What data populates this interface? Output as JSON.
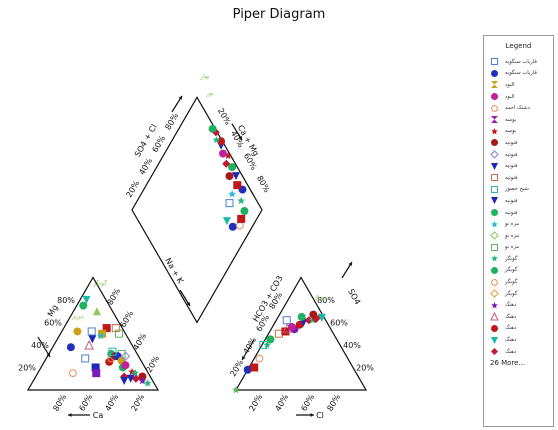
{
  "chart_data": {
    "type": "scatter",
    "title": "Piper Diagram",
    "axes": {
      "cation_triangle": {
        "left_label": "Mg",
        "bottom_label": "Ca",
        "right_label": "Na + K"
      },
      "anion_triangle": {
        "left_label": "HCO3 + CO3",
        "bottom_label": "Cl",
        "right_label": "SO4"
      },
      "diamond": {
        "upper_left_label": "SO4 + Cl",
        "upper_right_label": "Ca + Mg"
      },
      "ticks": [
        "20%",
        "40%",
        "60%",
        "80%"
      ]
    },
    "legend": {
      "title": "Legend",
      "more": "26 More...",
      "items": [
        {
          "name": "قاریاب سنگویه",
          "marker": "square-open",
          "color": "#4a7fd0"
        },
        {
          "name": "قاریاب سنگویه",
          "marker": "circle",
          "color": "#1f2fbf"
        },
        {
          "name": "البود",
          "marker": "hourglass",
          "color": "#c8a11a"
        },
        {
          "name": "البود",
          "marker": "circle",
          "color": "#c0219a"
        },
        {
          "name": "دشتک احمد",
          "marker": "circle-open",
          "color": "#e88a57"
        },
        {
          "name": "بوسه",
          "marker": "hourglass",
          "color": "#9b1bb0"
        },
        {
          "name": "بوسه",
          "marker": "star",
          "color": "#c01818"
        },
        {
          "name": "فتوتیه",
          "marker": "circle",
          "color": "#a81818"
        },
        {
          "name": "فتوتیه",
          "marker": "diamond-open",
          "color": "#7a88d8"
        },
        {
          "name": "فتوتیه",
          "marker": "triangle-down",
          "color": "#1a2ab8"
        },
        {
          "name": "فتوتیه",
          "marker": "square-open",
          "color": "#d06a4a"
        },
        {
          "name": "شیخ حصور",
          "marker": "square-open",
          "color": "#2ab8b0"
        },
        {
          "name": "فتوتیه",
          "marker": "triangle-down",
          "color": "#1a2ab8"
        },
        {
          "name": "فتوتیه",
          "marker": "circle",
          "color": "#1fb060"
        },
        {
          "name": "مزه نو",
          "marker": "star",
          "color": "#2ab8d8"
        },
        {
          "name": "مزه نو",
          "marker": "diamond-open",
          "color": "#8ac858"
        },
        {
          "name": "مزه نو",
          "marker": "square-open",
          "color": "#58b858"
        },
        {
          "name": "گوبگز",
          "marker": "star",
          "color": "#1fb880"
        },
        {
          "name": "گوبگز",
          "marker": "circle",
          "color": "#1fb060"
        },
        {
          "name": "گوبگز",
          "marker": "circle-open",
          "color": "#e88a57"
        },
        {
          "name": "گوبگز",
          "marker": "diamond-open",
          "color": "#e8a040"
        },
        {
          "name": "دهنگ",
          "marker": "star",
          "color": "#7a1ab8"
        },
        {
          "name": "دهنگ",
          "marker": "triangle-open",
          "color": "#c85a78"
        },
        {
          "name": "دهنگ",
          "marker": "circle",
          "color": "#c01818"
        },
        {
          "name": "دهنگ",
          "marker": "triangle-down",
          "color": "#1ab8a8"
        },
        {
          "name": "دهنگ",
          "marker": "diamond",
          "color": "#c01830"
        }
      ]
    },
    "annotations": [
      "گوبگز",
      "دهنگ",
      "تبریز",
      "بهار",
      "نور"
    ],
    "samples": {
      "cations": [
        {
          "Ca": 15,
          "Mg": 80,
          "marker": "triangle-down",
          "color": "#1ab8a8"
        },
        {
          "Ca": 20,
          "Mg": 75,
          "marker": "circle",
          "color": "#1fb060"
        },
        {
          "Ca": 12,
          "Mg": 70,
          "marker": "triangle",
          "color": "#8ac858"
        },
        {
          "Ca": 36,
          "Mg": 52,
          "marker": "circle",
          "color": "#c8a11a"
        },
        {
          "Ca": 48,
          "Mg": 38,
          "marker": "circle",
          "color": "#1f2fbf"
        },
        {
          "Ca": 12,
          "Mg": 55,
          "marker": "square",
          "color": "#c01818"
        },
        {
          "Ca": 5,
          "Mg": 55,
          "marker": "square-open",
          "color": "#d06a4a"
        },
        {
          "Ca": 25,
          "Mg": 52,
          "marker": "square-open",
          "color": "#4a7fd0"
        },
        {
          "Ca": 18,
          "Mg": 50,
          "marker": "square",
          "color": "#c8a11a"
        },
        {
          "Ca": 20,
          "Mg": 48,
          "marker": "star",
          "color": "#2ab8d8"
        },
        {
          "Ca": 5,
          "Mg": 50,
          "marker": "square-open",
          "color": "#58b858"
        },
        {
          "Ca": 28,
          "Mg": 45,
          "marker": "triangle-down",
          "color": "#1a2ab8"
        },
        {
          "Ca": 33,
          "Mg": 40,
          "marker": "triangle-open",
          "color": "#c85a78"
        },
        {
          "Ca": 42,
          "Mg": 28,
          "marker": "square-open",
          "color": "#4a7fd0"
        },
        {
          "Ca": 12,
          "Mg": 32,
          "marker": "square-open",
          "color": "#58b858"
        },
        {
          "Ca": 20,
          "Mg": 32,
          "marker": "circle",
          "color": "#1fb060"
        },
        {
          "Ca": 58,
          "Mg": 15,
          "marker": "circle-open",
          "color": "#e88a57"
        },
        {
          "Ca": 38,
          "Mg": 20,
          "marker": "square",
          "color": "#1a2ab8"
        },
        {
          "Ca": 40,
          "Mg": 15,
          "marker": "square",
          "color": "#7a1ab8"
        },
        {
          "Ca": 25,
          "Mg": 25,
          "marker": "circle",
          "color": "#c01818"
        },
        {
          "Ca": 22,
          "Mg": 28,
          "marker": "circle-open",
          "color": "#e88a57"
        },
        {
          "Ca": 18,
          "Mg": 30,
          "marker": "circle",
          "color": "#a81818"
        },
        {
          "Ca": 16,
          "Mg": 30,
          "marker": "circle",
          "color": "#1f2fbf"
        },
        {
          "Ca": 18,
          "Mg": 34,
          "marker": "square-open",
          "color": "#2ab8b0"
        },
        {
          "Ca": 15,
          "Mg": 26,
          "marker": "circle",
          "color": "#c8a11a"
        },
        {
          "Ca": 10,
          "Mg": 30,
          "marker": "diamond-open",
          "color": "#7a88d8"
        },
        {
          "Ca": 17,
          "Mg": 20,
          "marker": "circle",
          "color": "#1fb060"
        },
        {
          "Ca": 14,
          "Mg": 22,
          "marker": "circle",
          "color": "#c0219a"
        },
        {
          "Ca": 12,
          "Mg": 16,
          "marker": "star",
          "color": "#c01818"
        },
        {
          "Ca": 10,
          "Mg": 15,
          "marker": "star",
          "color": "#1fb880"
        },
        {
          "Ca": 12,
          "Mg": 10,
          "marker": "diamond",
          "color": "#c01830"
        },
        {
          "Ca": 16,
          "Mg": 10,
          "marker": "triangle-down",
          "color": "#1a2ab8"
        },
        {
          "Ca": 20,
          "Mg": 12,
          "marker": "diamond",
          "color": "#c01830"
        },
        {
          "Ca": 22,
          "Mg": 8,
          "marker": "triangle-down",
          "color": "#1a2ab8"
        },
        {
          "Ca": 6,
          "Mg": 12,
          "marker": "circle",
          "color": "#a81818"
        },
        {
          "Ca": 8,
          "Mg": 8,
          "marker": "star",
          "color": "#7a1ab8"
        },
        {
          "Ca": 5,
          "Mg": 6,
          "marker": "star",
          "color": "#1fb880"
        }
      ],
      "anions": [
        {
          "Cl": 0,
          "SO4": 0,
          "marker": "star",
          "color": "#58b858"
        },
        {
          "Cl": 0,
          "SO4": 18,
          "marker": "circle",
          "color": "#1f2fbf"
        },
        {
          "Cl": 4,
          "SO4": 20,
          "marker": "square",
          "color": "#c01818"
        },
        {
          "Cl": 4,
          "SO4": 28,
          "marker": "circle-open",
          "color": "#e88a57"
        },
        {
          "Cl": 1,
          "SO4": 40,
          "marker": "square-open",
          "color": "#2ab8b0"
        },
        {
          "Cl": 4,
          "SO4": 40,
          "marker": "star",
          "color": "#1fb880"
        },
        {
          "Cl": 4,
          "SO4": 45,
          "marker": "circle",
          "color": "#1fb060"
        },
        {
          "Cl": 8,
          "SO4": 50,
          "marker": "square-open",
          "color": "#d06a4a"
        },
        {
          "Cl": 12,
          "SO4": 52,
          "marker": "square",
          "color": "#c01818"
        },
        {
          "Cl": 12,
          "SO4": 55,
          "marker": "triangle-open",
          "color": "#c85a78"
        },
        {
          "Cl": 18,
          "SO4": 54,
          "marker": "circle",
          "color": "#7a1ab8"
        },
        {
          "Cl": 15,
          "SO4": 56,
          "marker": "circle",
          "color": "#c0219a"
        },
        {
          "Cl": 8,
          "SO4": 62,
          "marker": "square-open",
          "color": "#4a7fd0"
        },
        {
          "Cl": 20,
          "SO4": 58,
          "marker": "circle",
          "color": "#c01818"
        },
        {
          "Cl": 22,
          "SO4": 60,
          "marker": "triangle-down",
          "color": "#1a2ab8"
        },
        {
          "Cl": 25,
          "SO4": 62,
          "marker": "diamond",
          "color": "#c01830"
        },
        {
          "Cl": 28,
          "SO4": 62,
          "marker": "star",
          "color": "#1fb880"
        },
        {
          "Cl": 18,
          "SO4": 65,
          "marker": "circle",
          "color": "#1fb060"
        },
        {
          "Cl": 30,
          "SO4": 63,
          "marker": "diamond",
          "color": "#c01830"
        },
        {
          "Cl": 32,
          "SO4": 65,
          "marker": "star",
          "color": "#c01818"
        },
        {
          "Cl": 26,
          "SO4": 67,
          "marker": "circle",
          "color": "#a81818"
        },
        {
          "Cl": 34,
          "SO4": 64,
          "marker": "triangle-down",
          "color": "#1ab8a8"
        }
      ],
      "diamond": [
        {
          "CaMg": 70,
          "SO4Cl": 15,
          "marker": "circle",
          "color": "#1f2fbf"
        },
        {
          "CaMg": 76,
          "SO4Cl": 10,
          "marker": "circle-open",
          "color": "#e88a57"
        },
        {
          "CaMg": 80,
          "SO4Cl": 12,
          "marker": "square",
          "color": "#c01818"
        },
        {
          "CaMg": 86,
          "SO4Cl": 13,
          "marker": "circle",
          "color": "#1fb060"
        },
        {
          "CaMg": 68,
          "SO4Cl": 22,
          "marker": "triangle-down",
          "color": "#1ab8a8"
        },
        {
          "CaMg": 78,
          "SO4Cl": 28,
          "marker": "square-open",
          "color": "#4a7fd0"
        },
        {
          "CaMg": 88,
          "SO4Cl": 20,
          "marker": "star",
          "color": "#1fb880"
        },
        {
          "CaMg": 84,
          "SO4Cl": 30,
          "marker": "star",
          "color": "#2ab8d8"
        },
        {
          "CaMg": 94,
          "SO4Cl": 24,
          "marker": "circle",
          "color": "#1f2fbf"
        },
        {
          "CaMg": 92,
          "SO4Cl": 30,
          "marker": "square",
          "color": "#c01818"
        },
        {
          "CaMg": 95,
          "SO4Cl": 35,
          "marker": "triangle-down",
          "color": "#1a2ab8"
        },
        {
          "CaMg": 90,
          "SO4Cl": 40,
          "marker": "circle",
          "color": "#a81818"
        },
        {
          "CaMg": 96,
          "SO4Cl": 42,
          "marker": "circle",
          "color": "#1fb060"
        },
        {
          "CaMg": 93,
          "SO4Cl": 48,
          "marker": "diamond",
          "color": "#c01830"
        },
        {
          "CaMg": 98,
          "SO4Cl": 50,
          "marker": "star",
          "color": "#c01818"
        },
        {
          "CaMg": 95,
          "SO4Cl": 55,
          "marker": "circle",
          "color": "#c0219a"
        },
        {
          "CaMg": 97,
          "SO4Cl": 60,
          "marker": "triangle-down",
          "color": "#1a2ab8"
        },
        {
          "CaMg": 99,
          "SO4Cl": 62,
          "marker": "circle",
          "color": "#c01818"
        },
        {
          "CaMg": 96,
          "SO4Cl": 66,
          "marker": "star",
          "color": "#1fb880"
        },
        {
          "CaMg": 99,
          "SO4Cl": 70,
          "marker": "diamond",
          "color": "#c01830"
        },
        {
          "CaMg": 98,
          "SO4Cl": 74,
          "marker": "circle",
          "color": "#1fb060"
        }
      ]
    }
  }
}
